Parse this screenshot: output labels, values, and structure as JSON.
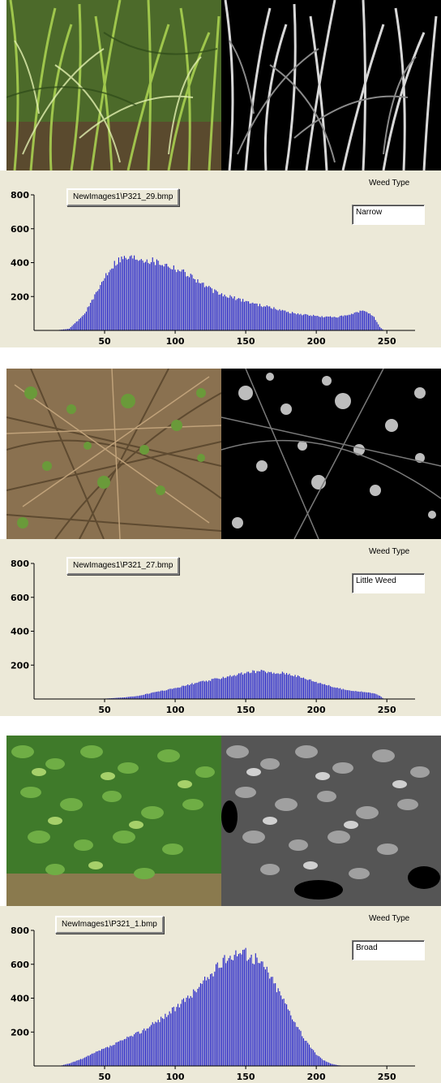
{
  "weed_type_label": "Weed Type",
  "panels": [
    {
      "file_name": "NewImages1\\P321_29.bmp",
      "weed_type": "Narrow",
      "photo_kind": "grass"
    },
    {
      "file_name": "NewImages1\\P321_27.bmp",
      "weed_type": "Little Weed",
      "photo_kind": "little"
    },
    {
      "file_name": "NewImages1\\P321_1.bmp",
      "weed_type": "Broad",
      "photo_kind": "broad"
    }
  ],
  "chart_data": [
    {
      "type": "bar",
      "title": "",
      "xlabel": "",
      "ylabel": "",
      "xlim": [
        0,
        270
      ],
      "ylim": [
        0,
        800
      ],
      "x_ticks": [
        50,
        100,
        150,
        200,
        250
      ],
      "y_ticks": [
        200,
        400,
        600,
        800
      ],
      "color": "#1e1ec8",
      "profile": [
        [
          15,
          0
        ],
        [
          25,
          10
        ],
        [
          35,
          90
        ],
        [
          45,
          230
        ],
        [
          50,
          320
        ],
        [
          55,
          380
        ],
        [
          60,
          420
        ],
        [
          65,
          430
        ],
        [
          70,
          430
        ],
        [
          75,
          430
        ],
        [
          80,
          420
        ],
        [
          85,
          410
        ],
        [
          90,
          400
        ],
        [
          95,
          385
        ],
        [
          100,
          370
        ],
        [
          105,
          350
        ],
        [
          110,
          330
        ],
        [
          115,
          300
        ],
        [
          120,
          270
        ],
        [
          125,
          245
        ],
        [
          130,
          220
        ],
        [
          135,
          205
        ],
        [
          140,
          195
        ],
        [
          145,
          185
        ],
        [
          150,
          175
        ],
        [
          155,
          160
        ],
        [
          160,
          150
        ],
        [
          165,
          140
        ],
        [
          170,
          130
        ],
        [
          175,
          120
        ],
        [
          180,
          110
        ],
        [
          185,
          100
        ],
        [
          190,
          95
        ],
        [
          195,
          90
        ],
        [
          200,
          85
        ],
        [
          205,
          80
        ],
        [
          210,
          80
        ],
        [
          215,
          80
        ],
        [
          220,
          85
        ],
        [
          225,
          95
        ],
        [
          230,
          110
        ],
        [
          235,
          115
        ],
        [
          240,
          90
        ],
        [
          245,
          20
        ],
        [
          248,
          0
        ]
      ]
    },
    {
      "type": "bar",
      "title": "",
      "xlabel": "",
      "ylabel": "",
      "xlim": [
        0,
        270
      ],
      "ylim": [
        0,
        800
      ],
      "x_ticks": [
        50,
        100,
        150,
        200,
        250
      ],
      "y_ticks": [
        200,
        400,
        600,
        800
      ],
      "color": "#1e1ec8",
      "profile": [
        [
          45,
          0
        ],
        [
          55,
          5
        ],
        [
          65,
          10
        ],
        [
          75,
          20
        ],
        [
          85,
          40
        ],
        [
          95,
          55
        ],
        [
          105,
          75
        ],
        [
          115,
          95
        ],
        [
          125,
          110
        ],
        [
          135,
          130
        ],
        [
          145,
          145
        ],
        [
          155,
          160
        ],
        [
          160,
          165
        ],
        [
          165,
          160
        ],
        [
          170,
          150
        ],
        [
          175,
          155
        ],
        [
          180,
          150
        ],
        [
          185,
          140
        ],
        [
          190,
          125
        ],
        [
          195,
          115
        ],
        [
          200,
          100
        ],
        [
          205,
          90
        ],
        [
          210,
          75
        ],
        [
          215,
          65
        ],
        [
          220,
          55
        ],
        [
          225,
          50
        ],
        [
          230,
          45
        ],
        [
          235,
          40
        ],
        [
          240,
          35
        ],
        [
          245,
          20
        ],
        [
          248,
          0
        ]
      ]
    },
    {
      "type": "bar",
      "title": "",
      "xlabel": "",
      "ylabel": "",
      "xlim": [
        0,
        270
      ],
      "ylim": [
        0,
        800
      ],
      "x_ticks": [
        50,
        100,
        150,
        200,
        250
      ],
      "y_ticks": [
        200,
        400,
        600,
        800
      ],
      "color": "#1e1ec8",
      "profile": [
        [
          18,
          0
        ],
        [
          25,
          15
        ],
        [
          35,
          45
        ],
        [
          45,
          85
        ],
        [
          55,
          120
        ],
        [
          65,
          160
        ],
        [
          75,
          200
        ],
        [
          85,
          250
        ],
        [
          95,
          310
        ],
        [
          105,
          370
        ],
        [
          115,
          450
        ],
        [
          125,
          540
        ],
        [
          130,
          580
        ],
        [
          135,
          620
        ],
        [
          140,
          660
        ],
        [
          145,
          675
        ],
        [
          150,
          660
        ],
        [
          155,
          640
        ],
        [
          160,
          610
        ],
        [
          165,
          570
        ],
        [
          170,
          490
        ],
        [
          175,
          420
        ],
        [
          180,
          340
        ],
        [
          185,
          260
        ],
        [
          190,
          180
        ],
        [
          195,
          120
        ],
        [
          200,
          70
        ],
        [
          205,
          35
        ],
        [
          210,
          15
        ],
        [
          215,
          5
        ],
        [
          220,
          0
        ]
      ]
    }
  ]
}
